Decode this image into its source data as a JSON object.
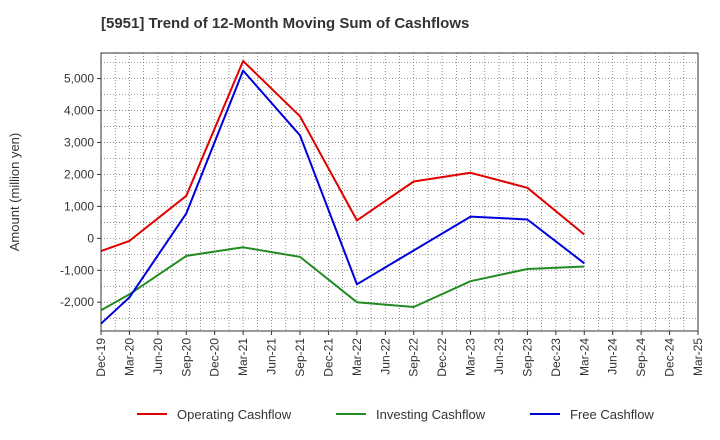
{
  "chart_data": {
    "type": "line",
    "title": "[5951]  Trend of 12-Month Moving Sum of Cashflows",
    "ylabel": "Amount (million yen)",
    "xlabel": "",
    "ylim": [
      -2900,
      5800
    ],
    "yticks": [
      -2000,
      -1000,
      0,
      1000,
      2000,
      3000,
      4000,
      5000
    ],
    "ytick_labels": [
      "-2,000",
      "-1,000",
      "0",
      "1,000",
      "2,000",
      "3,000",
      "4,000",
      "5,000"
    ],
    "categories": [
      "Dec-19",
      "Mar-20",
      "Jun-20",
      "Sep-20",
      "Dec-20",
      "Mar-21",
      "Jun-21",
      "Sep-21",
      "Dec-21",
      "Mar-22",
      "Jun-22",
      "Sep-22",
      "Dec-22",
      "Mar-23",
      "Jun-23",
      "Sep-23",
      "Dec-23",
      "Mar-24",
      "Jun-24",
      "Sep-24",
      "Dec-24",
      "Mar-25"
    ],
    "grid": true,
    "legend_position": "bottom",
    "series": [
      {
        "name": "Operating Cashflow",
        "color": "#e00000",
        "values": [
          -400,
          -80,
          null,
          1330,
          null,
          5550,
          null,
          3820,
          null,
          560,
          null,
          1780,
          null,
          2050,
          null,
          1580,
          null,
          120,
          null,
          null,
          null,
          null
        ]
      },
      {
        "name": "Investing Cashflow",
        "color": "#228b22",
        "values": [
          -2250,
          -1750,
          null,
          -550,
          null,
          -280,
          null,
          -580,
          null,
          -2000,
          null,
          -2150,
          null,
          -1340,
          null,
          -960,
          null,
          -880,
          null,
          null,
          null,
          null
        ]
      },
      {
        "name": "Free Cashflow",
        "color": "#0000dd",
        "values": [
          -2670,
          -1850,
          null,
          780,
          null,
          5250,
          null,
          3220,
          null,
          -1440,
          null,
          null,
          null,
          680,
          null,
          590,
          null,
          -780,
          null,
          null,
          null,
          null
        ]
      }
    ]
  }
}
